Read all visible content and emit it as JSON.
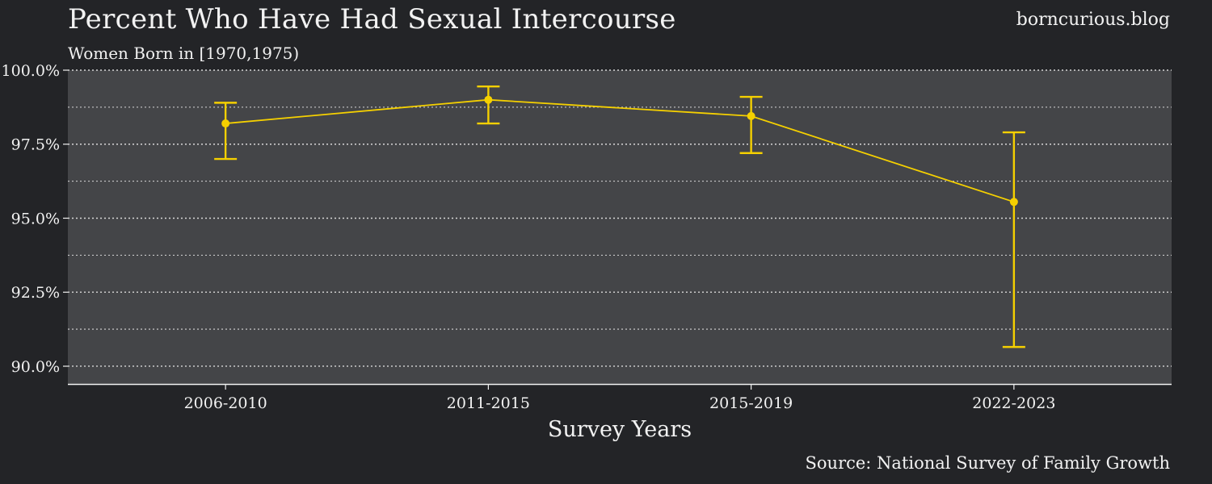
{
  "header": {
    "title": "Percent Who Have Had Sexual Intercourse",
    "subtitle": "Women Born in [1970,1975)",
    "site": "borncurious.blog"
  },
  "footer": {
    "source": "Source: National Survey of Family Growth"
  },
  "colors": {
    "background": "#232427",
    "panel": "#444548",
    "series": "#f5d000",
    "text": "#f2f2f2",
    "grid": "#d8d8d8"
  },
  "chart_data": {
    "type": "line",
    "xlabel": "Survey Years",
    "ylabel": "",
    "categories": [
      "2006-2010",
      "2011-2015",
      "2015-2019",
      "2022-2023"
    ],
    "series": [
      {
        "values": [
          98.2,
          99.0,
          98.45,
          95.55
        ],
        "lower": [
          97.0,
          98.2,
          97.2,
          90.65
        ],
        "upper": [
          98.9,
          99.45,
          99.1,
          97.9
        ]
      }
    ],
    "ylim": [
      89.4,
      100.0
    ],
    "yticks": [
      90.0,
      92.5,
      95.0,
      97.5,
      100.0
    ],
    "ytick_labels": [
      "90.0%",
      "92.5%",
      "95.0%",
      "97.5%",
      "100.0%"
    ],
    "minor_grid": [
      91.25,
      93.75,
      96.25,
      98.75
    ],
    "grid": true,
    "legend": "none",
    "error_bars": true
  }
}
